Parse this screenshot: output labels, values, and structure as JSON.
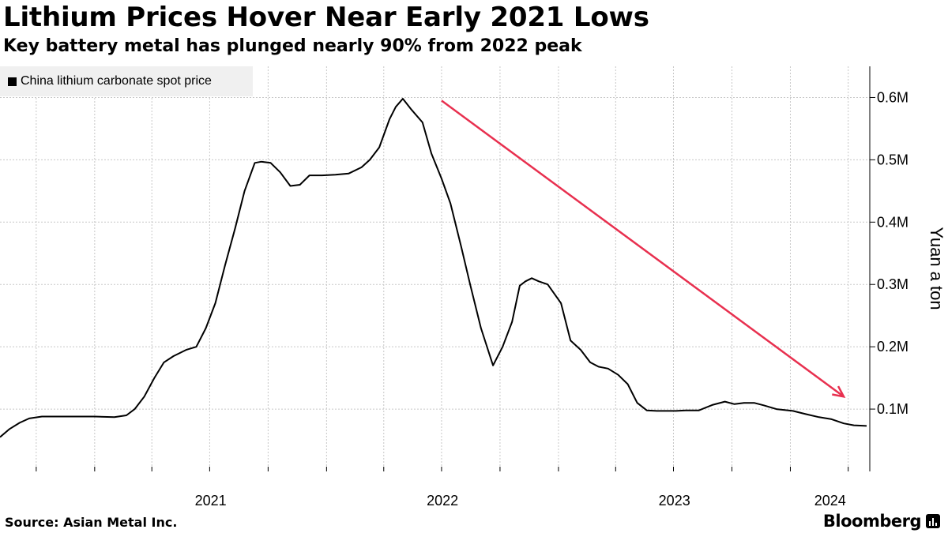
{
  "header": {
    "title": "Lithium Prices Hover Near Early 2021 Lows",
    "subtitle": "Key battery metal has plunged nearly 90% from 2022 peak"
  },
  "footer": {
    "source": "Source: Asian Metal Inc.",
    "brand": "Bloomberg"
  },
  "colors": {
    "line": "#000000",
    "arrow": "#e8304f",
    "grid": "#c8c8c8",
    "legend_bg": "#f0f0f0"
  },
  "chart_data": {
    "type": "line",
    "title": "",
    "legend": [
      "China lithium carbonate spot price"
    ],
    "legend_position": "top-left",
    "ylabel": "Yuan a ton",
    "ylim": [
      0,
      650000
    ],
    "xlim": [
      "2020-08-05",
      "2024-05-05"
    ],
    "x_tick_labels": [
      "2021",
      "2022",
      "2023",
      "2024"
    ],
    "y_tick_labels": [
      "0.1M",
      "0.2M",
      "0.3M",
      "0.4M",
      "0.5M",
      "0.6M"
    ],
    "y_tick_values": [
      100000,
      200000,
      300000,
      400000,
      500000,
      600000
    ],
    "grid": true,
    "series": [
      {
        "name": "China lithium carbonate spot price",
        "x": [
          "2020-08-05",
          "2020-08-20",
          "2020-09-05",
          "2020-09-20",
          "2020-10-10",
          "2020-11-01",
          "2020-12-01",
          "2021-01-01",
          "2021-02-01",
          "2021-02-20",
          "2021-03-05",
          "2021-03-20",
          "2021-04-05",
          "2021-04-20",
          "2021-05-05",
          "2021-05-25",
          "2021-06-10",
          "2021-06-25",
          "2021-07-10",
          "2021-07-25",
          "2021-08-10",
          "2021-08-25",
          "2021-09-10",
          "2021-09-20",
          "2021-10-05",
          "2021-10-20",
          "2021-11-05",
          "2021-11-20",
          "2021-12-05",
          "2021-12-25",
          "2022-01-15",
          "2022-02-05",
          "2022-02-25",
          "2022-03-10",
          "2022-03-25",
          "2022-04-10",
          "2022-04-20",
          "2022-05-01",
          "2022-05-15",
          "2022-06-01",
          "2022-06-15",
          "2022-07-01",
          "2022-07-15",
          "2022-08-01",
          "2022-08-15",
          "2022-09-01",
          "2022-09-20",
          "2022-10-05",
          "2022-10-20",
          "2022-11-01",
          "2022-11-10",
          "2022-11-20",
          "2022-12-01",
          "2022-12-15",
          "2023-01-05",
          "2023-01-20",
          "2023-02-05",
          "2023-02-20",
          "2023-03-05",
          "2023-03-20",
          "2023-04-05",
          "2023-04-20",
          "2023-05-05",
          "2023-05-20",
          "2023-06-05",
          "2023-06-20",
          "2023-07-05",
          "2023-07-20",
          "2023-08-10",
          "2023-09-01",
          "2023-09-20",
          "2023-10-05",
          "2023-10-20",
          "2023-11-05",
          "2023-11-20",
          "2023-12-10",
          "2024-01-05",
          "2024-01-25",
          "2024-02-15",
          "2024-03-05",
          "2024-03-25",
          "2024-04-10",
          "2024-04-30"
        ],
        "values": [
          55000,
          68000,
          78000,
          85000,
          88000,
          88000,
          88000,
          88000,
          87000,
          90000,
          100000,
          120000,
          150000,
          175000,
          185000,
          195000,
          200000,
          230000,
          270000,
          330000,
          390000,
          450000,
          495000,
          497000,
          495000,
          480000,
          458000,
          460000,
          475000,
          475000,
          476000,
          478000,
          488000,
          500000,
          520000,
          565000,
          585000,
          598000,
          580000,
          560000,
          510000,
          470000,
          430000,
          360000,
          300000,
          230000,
          170000,
          200000,
          240000,
          298000,
          305000,
          310000,
          305000,
          300000,
          270000,
          210000,
          195000,
          175000,
          168000,
          165000,
          155000,
          140000,
          110000,
          98000,
          97000,
          97000,
          97000,
          98000,
          98000,
          107000,
          112000,
          108000,
          110000,
          110000,
          106000,
          100000,
          97000,
          92000,
          87000,
          84000,
          77000,
          74000,
          73000
        ]
      }
    ],
    "annotations": [
      {
        "type": "arrow",
        "color": "#e8304f",
        "from": [
          "2022-07-01",
          595000
        ],
        "to": [
          "2024-03-25",
          120000
        ]
      }
    ]
  }
}
